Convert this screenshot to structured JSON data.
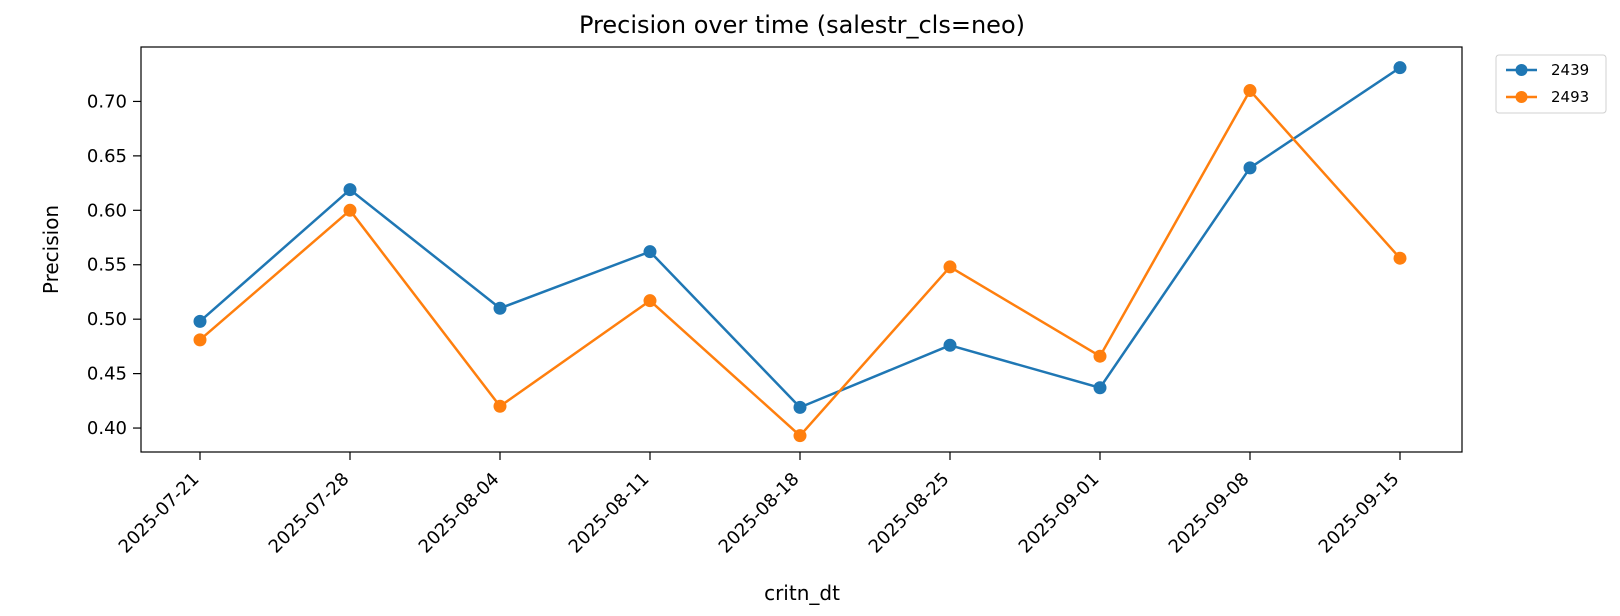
{
  "chart_data": {
    "type": "line",
    "title": "Precision over time (salestr_cls=neo)",
    "xlabel": "critn_dt",
    "ylabel": "Precision",
    "categories": [
      "2025-07-21",
      "2025-07-28",
      "2025-08-04",
      "2025-08-11",
      "2025-08-18",
      "2025-08-25",
      "2025-09-01",
      "2025-09-08",
      "2025-09-15"
    ],
    "ylim": [
      0.378,
      0.75
    ],
    "yticks": [
      0.4,
      0.45,
      0.5,
      0.55,
      0.6,
      0.65,
      0.7
    ],
    "ytick_labels": [
      "0.40",
      "0.45",
      "0.50",
      "0.55",
      "0.60",
      "0.65",
      "0.70"
    ],
    "grid": false,
    "legend_position": "outside-top-right",
    "series": [
      {
        "name": "2439",
        "color": "#1f77b4",
        "values": [
          0.498,
          0.619,
          0.51,
          0.562,
          0.419,
          0.476,
          0.437,
          0.639,
          0.731
        ]
      },
      {
        "name": "2493",
        "color": "#ff7f0e",
        "values": [
          0.481,
          0.6,
          0.42,
          0.517,
          0.393,
          0.548,
          0.466,
          0.71,
          0.556
        ]
      }
    ]
  }
}
